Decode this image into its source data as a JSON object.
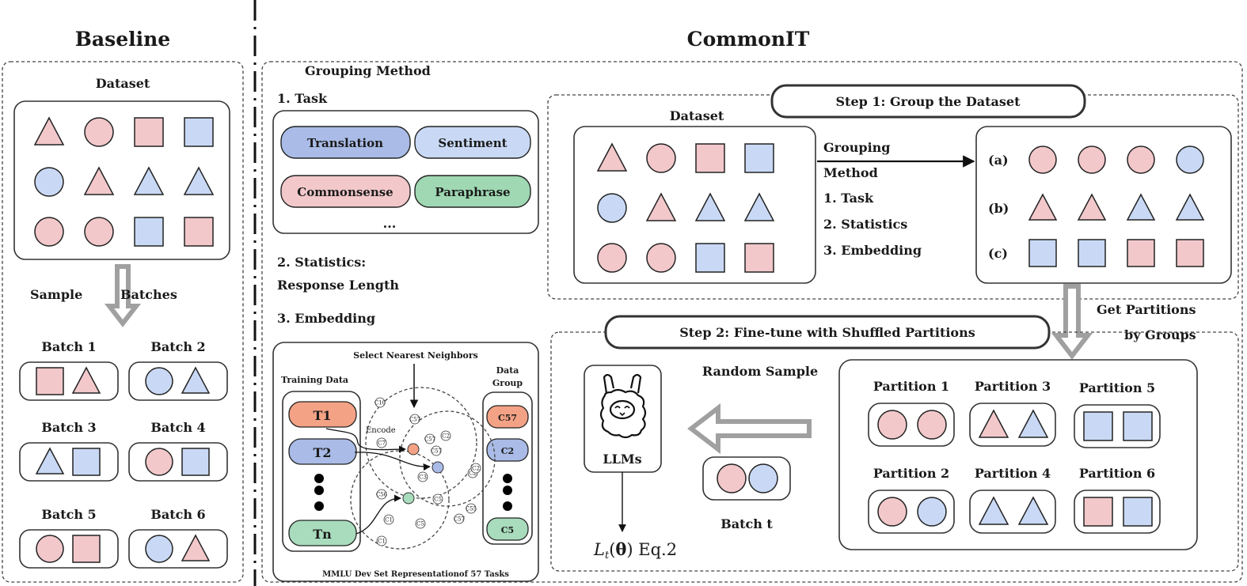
{
  "colors": {
    "pink": "#f2c8cb",
    "blue": "#c9d9f5",
    "translation": "#a9bbe6",
    "sentiment": "#c9d9f5",
    "commonsense": "#f2c8cb",
    "paraphrase": "#9fd8b3",
    "t1": "#f4a285",
    "t2": "#a9bbe6",
    "tn": "#a8dcbc",
    "arrow_gray": "#a0a0a0"
  },
  "baseline": {
    "title": "Baseline",
    "dataset_label": "Dataset",
    "dataset_grid": [
      [
        "triangle:pink",
        "circle:pink",
        "square:pink",
        "square:blue"
      ],
      [
        "circle:blue",
        "triangle:pink",
        "triangle:blue",
        "triangle:blue"
      ],
      [
        "circle:pink",
        "circle:pink",
        "square:blue",
        "square:pink"
      ]
    ],
    "sample_word1": "Sample",
    "sample_word2": "Batches",
    "batches": [
      {
        "label": "Batch 1",
        "items": [
          [
            "square:pink",
            "triangle:pink"
          ]
        ]
      },
      {
        "label": "Batch 2",
        "items": [
          [
            "circle:blue",
            "triangle:blue"
          ]
        ]
      },
      {
        "label": "Batch 3",
        "items": [
          [
            "triangle:blue",
            "square:blue"
          ]
        ]
      },
      {
        "label": "Batch 4",
        "items": [
          [
            "circle:pink",
            "square:blue"
          ]
        ]
      },
      {
        "label": "Batch 5",
        "items": [
          [
            "circle:pink",
            "square:pink"
          ]
        ]
      },
      {
        "label": "Batch 6",
        "items": [
          [
            "circle:blue",
            "triangle:pink"
          ]
        ]
      }
    ]
  },
  "commonit": {
    "title": "CommonIT",
    "grouping": {
      "title": "Grouping Method",
      "task_heading": "1. Task",
      "tasks": [
        "Translation",
        "Sentiment",
        "Commonsense",
        "Paraphrase"
      ],
      "ellipsis": "...",
      "stats_heading_1": "2. Statistics:",
      "stats_heading_2": "Response Length",
      "embedding_heading": "3. Embedding",
      "embedding": {
        "select_label": "Select Nearest Neighbors",
        "training_label": "Training Data",
        "training_items": [
          "T1",
          "T2",
          "Tn"
        ],
        "group_label_1": "Data",
        "group_label_2": "Group",
        "group_items": [
          "C57",
          "C2",
          "C5"
        ],
        "encode_label": "Encode",
        "cluster_labels": [
          "C10",
          "C57",
          "C7",
          "C57",
          "C2",
          "C57",
          "C3",
          "C2",
          "C2",
          "C56",
          "C5",
          "C55",
          "C57",
          "C1",
          "C5",
          "C1"
        ],
        "caption": "MMLU Dev Set Representationof 57 Tasks"
      }
    },
    "step1": {
      "title": "Step 1: Group the Dataset",
      "dataset_label": "Dataset",
      "dataset_grid": [
        [
          "triangle:pink",
          "circle:pink",
          "square:pink",
          "square:blue"
        ],
        [
          "circle:blue",
          "triangle:pink",
          "triangle:blue",
          "triangle:blue"
        ],
        [
          "circle:pink",
          "circle:pink",
          "square:blue",
          "square:pink"
        ]
      ],
      "method_lines": [
        "Grouping",
        "Method",
        "1. Task",
        "2. Statistics",
        "3. Embedding"
      ],
      "groups": [
        {
          "label": "(a)",
          "items": [
            [
              "circle:pink",
              "circle:pink",
              "circle:pink",
              "circle:blue"
            ]
          ]
        },
        {
          "label": "(b)",
          "items": [
            [
              "triangle:pink",
              "triangle:pink",
              "triangle:blue",
              "triangle:blue"
            ]
          ]
        },
        {
          "label": "(c)",
          "items": [
            [
              "square:blue",
              "square:blue",
              "square:pink",
              "square:pink"
            ]
          ]
        }
      ],
      "partition_label_1": "Get Partitions",
      "partition_label_2": "by Groups"
    },
    "step2": {
      "title": "Step 2: Fine-tune with Shuffled Partitions",
      "model_label": "LLMs",
      "loss": {
        "symbol": "L",
        "subscript": "t",
        "arg": "θ",
        "ref": "Eq.2"
      },
      "random_sample_label": "Random Sample",
      "batch_label": "Batch t",
      "batch_items": [
        [
          "circle:pink",
          "circle:blue"
        ]
      ],
      "partitions": [
        {
          "label": "Partition 1",
          "items": [
            [
              "circle:pink",
              "circle:pink"
            ]
          ]
        },
        {
          "label": "Partition 3",
          "items": [
            [
              "triangle:pink",
              "triangle:blue"
            ]
          ]
        },
        {
          "label": "Partition 5",
          "items": [
            [
              "square:blue",
              "square:blue"
            ]
          ]
        },
        {
          "label": "Partition 2",
          "items": [
            [
              "circle:pink",
              "circle:blue"
            ]
          ]
        },
        {
          "label": "Partition 4",
          "items": [
            [
              "triangle:blue",
              "triangle:blue"
            ]
          ]
        },
        {
          "label": "Partition 6",
          "items": [
            [
              "square:pink",
              "square:blue"
            ]
          ]
        }
      ]
    }
  }
}
